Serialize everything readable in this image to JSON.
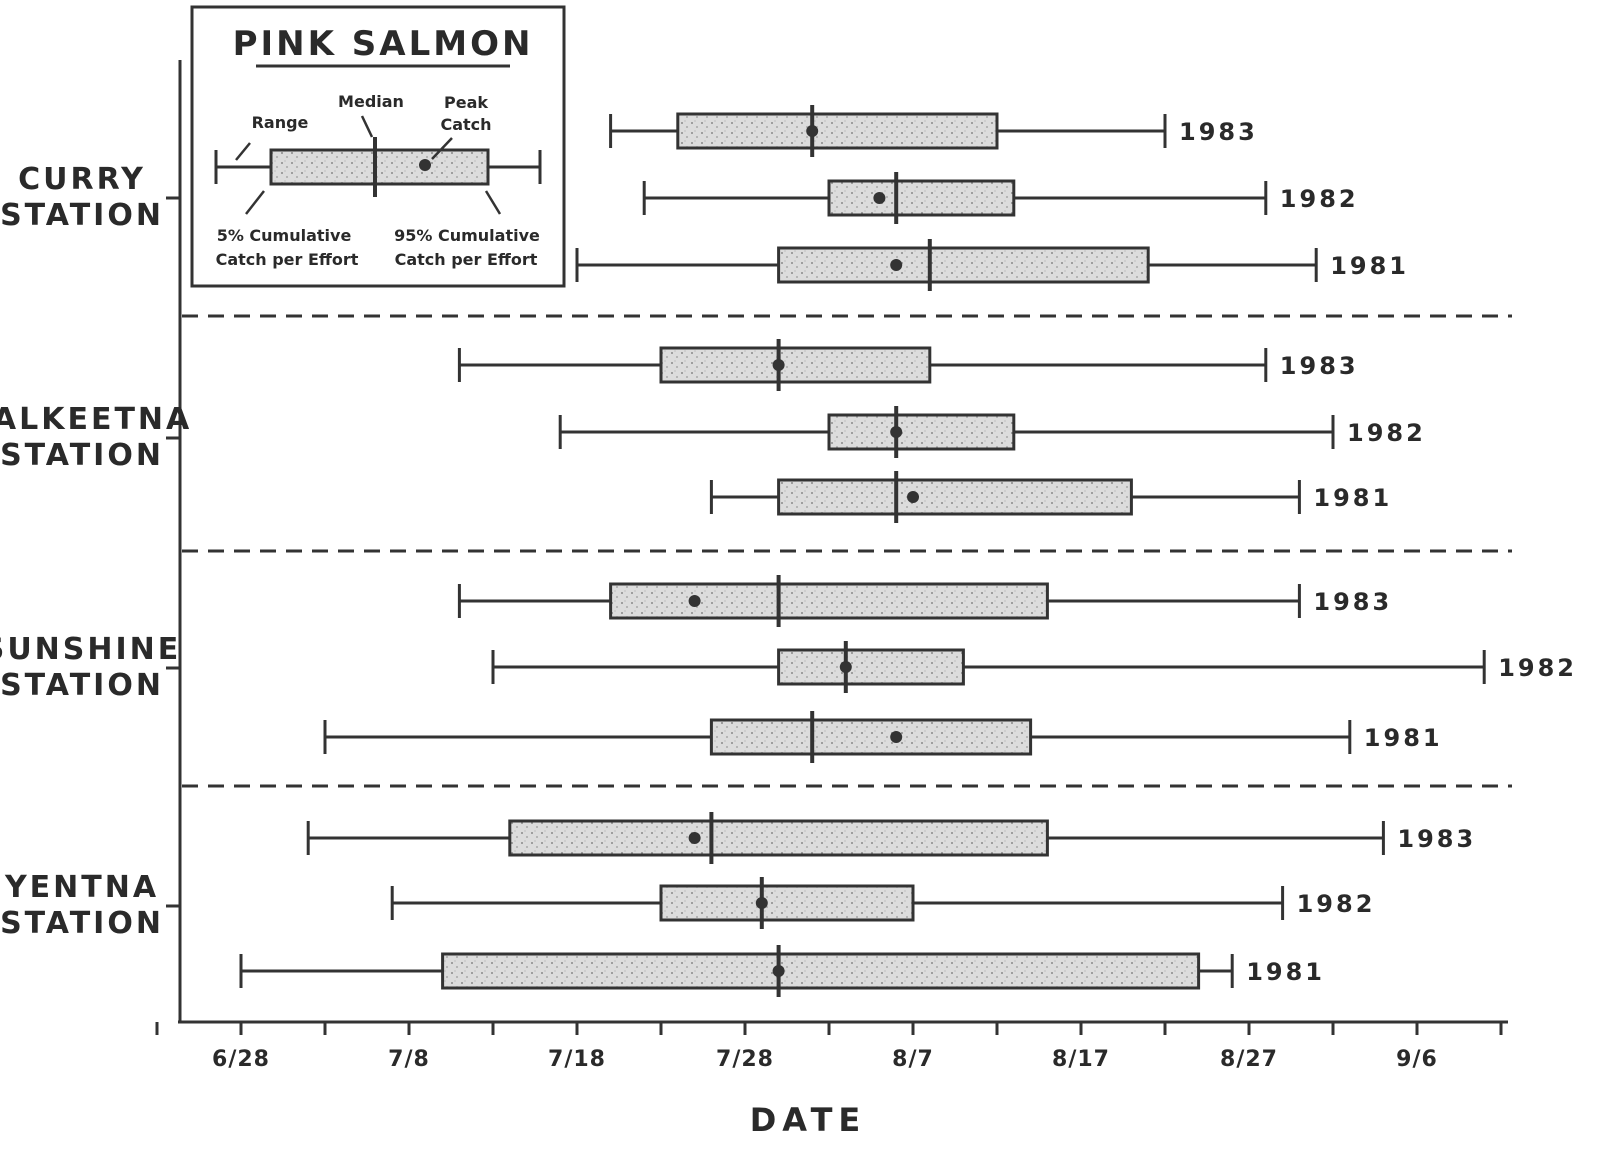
{
  "chart_data": {
    "type": "box",
    "title": "PINK SALMON",
    "xlabel": "DATE",
    "x_ticks": [
      "6/28",
      "7/8",
      "7/18",
      "7/28",
      "8/7",
      "8/17",
      "8/27",
      "9/6"
    ],
    "legend": {
      "title": "PINK SALMON",
      "range": "Range",
      "median": "Median",
      "peak_line1": "Peak",
      "peak_line2": "Catch",
      "p5_line1": "5% Cumulative",
      "p5_line2": "Catch per Effort",
      "p95_line1": "95% Cumulative",
      "p95_line2": "Catch per Effort"
    },
    "stations": [
      {
        "label_line1": "CURRY",
        "label_line2": "STATION",
        "years": [
          {
            "year": "1983",
            "min": "7/20",
            "p5": "7/24",
            "median": "8/1",
            "peak": "8/1",
            "p95": "8/12",
            "max": "8/22"
          },
          {
            "year": "1982",
            "min": "7/22",
            "p5": "8/2",
            "median": "8/6",
            "peak": "8/5",
            "p95": "8/13",
            "max": "8/28"
          },
          {
            "year": "1981",
            "min": "7/18",
            "p5": "7/30",
            "median": "8/8",
            "peak": "8/6",
            "p95": "8/21",
            "max": "8/31"
          }
        ]
      },
      {
        "label_line1": "TALKEETNA",
        "label_line2": "STATION",
        "years": [
          {
            "year": "1983",
            "min": "7/11",
            "p5": "7/23",
            "median": "7/30",
            "peak": "7/30",
            "p95": "8/8",
            "max": "8/28"
          },
          {
            "year": "1982",
            "min": "7/17",
            "p5": "8/2",
            "median": "8/6",
            "peak": "8/6",
            "p95": "8/13",
            "max": "9/1"
          },
          {
            "year": "1981",
            "min": "7/26",
            "p5": "7/30",
            "median": "8/6",
            "peak": "8/7",
            "p95": "8/20",
            "max": "8/30"
          }
        ]
      },
      {
        "label_line1": "SUNSHINE",
        "label_line2": "STATION",
        "years": [
          {
            "year": "1983",
            "min": "7/11",
            "p5": "7/20",
            "median": "7/30",
            "peak": "7/25",
            "p95": "8/15",
            "max": "8/30"
          },
          {
            "year": "1982",
            "min": "7/13",
            "p5": "7/30",
            "median": "8/3",
            "peak": "8/3",
            "p95": "8/10",
            "max": "9/10"
          },
          {
            "year": "1981",
            "min": "7/3",
            "p5": "7/26",
            "median": "8/1",
            "peak": "8/6",
            "p95": "8/14",
            "max": "9/2"
          }
        ]
      },
      {
        "label_line1": "YENTNA",
        "label_line2": "STATION",
        "years": [
          {
            "year": "1983",
            "min": "7/2",
            "p5": "7/14",
            "median": "7/26",
            "peak": "7/25",
            "p95": "8/15",
            "max": "9/4"
          },
          {
            "year": "1982",
            "min": "7/7",
            "p5": "7/23",
            "median": "7/29",
            "peak": "7/29",
            "p95": "8/7",
            "max": "8/29"
          },
          {
            "year": "1981",
            "min": "6/28",
            "p5": "7/10",
            "median": "7/30",
            "peak": "7/30",
            "p95": "8/24",
            "max": "8/26"
          }
        ]
      }
    ]
  }
}
